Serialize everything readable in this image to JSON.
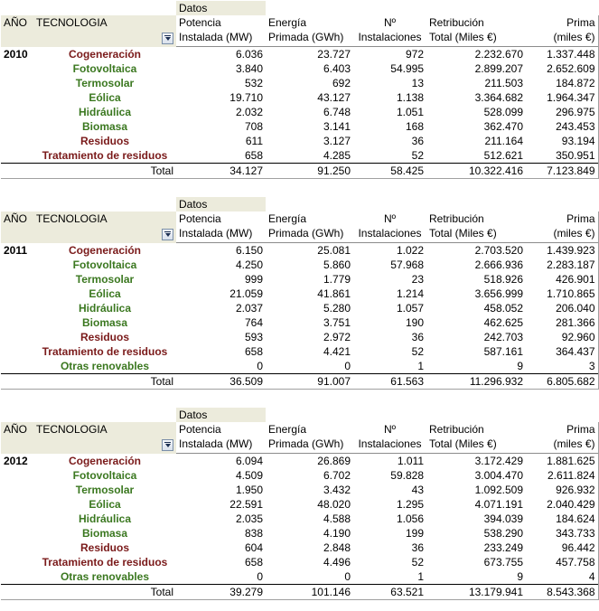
{
  "datos_label": "Datos",
  "headers": {
    "ano": "AÑO",
    "tecnologia": "TECNOLOGIA",
    "potencia": [
      "Potencia",
      "Instalada (MW)"
    ],
    "energia": [
      "Energía",
      "Primada (GWh)"
    ],
    "instalaciones": [
      "Nº",
      "Instalaciones"
    ],
    "retribucion": [
      "Retribución",
      "Total (Miles €)"
    ],
    "prima": [
      "Prima",
      "(miles €)"
    ]
  },
  "total_label": "Total",
  "filter_icon": "dropdown-filter-icon",
  "colors": {
    "green": "#3b7820",
    "maroon": "#7a1a1a",
    "header_bg": "#ecebdc"
  },
  "tables": [
    {
      "year": "2010",
      "rows": [
        {
          "tec": "Cogeneración",
          "color": "maroon",
          "potencia": "6.036",
          "energia": "23.727",
          "instalaciones": "972",
          "retribucion": "2.232.670",
          "prima": "1.337.448"
        },
        {
          "tec": "Fotovoltaica",
          "color": "green",
          "potencia": "3.840",
          "energia": "6.403",
          "instalaciones": "54.995",
          "retribucion": "2.899.207",
          "prima": "2.652.609"
        },
        {
          "tec": "Termosolar",
          "color": "green",
          "potencia": "532",
          "energia": "692",
          "instalaciones": "13",
          "retribucion": "211.503",
          "prima": "184.872"
        },
        {
          "tec": "Eólica",
          "color": "green",
          "potencia": "19.710",
          "energia": "43.127",
          "instalaciones": "1.138",
          "retribucion": "3.364.682",
          "prima": "1.964.347"
        },
        {
          "tec": "Hidráulica",
          "color": "green",
          "potencia": "2.032",
          "energia": "6.748",
          "instalaciones": "1.051",
          "retribucion": "528.099",
          "prima": "296.975"
        },
        {
          "tec": "Biomasa",
          "color": "green",
          "potencia": "708",
          "energia": "3.141",
          "instalaciones": "168",
          "retribucion": "362.470",
          "prima": "243.453"
        },
        {
          "tec": "Residuos",
          "color": "maroon",
          "potencia": "611",
          "energia": "3.127",
          "instalaciones": "36",
          "retribucion": "211.164",
          "prima": "93.194"
        },
        {
          "tec": "Tratamiento de residuos",
          "color": "maroon",
          "potencia": "658",
          "energia": "4.285",
          "instalaciones": "52",
          "retribucion": "512.621",
          "prima": "350.951"
        }
      ],
      "total": {
        "potencia": "34.127",
        "energia": "91.250",
        "instalaciones": "58.425",
        "retribucion": "10.322.416",
        "prima": "7.123.849"
      }
    },
    {
      "year": "2011",
      "rows": [
        {
          "tec": "Cogeneración",
          "color": "maroon",
          "potencia": "6.150",
          "energia": "25.081",
          "instalaciones": "1.022",
          "retribucion": "2.703.520",
          "prima": "1.439.923"
        },
        {
          "tec": "Fotovoltaica",
          "color": "green",
          "potencia": "4.250",
          "energia": "5.860",
          "instalaciones": "57.968",
          "retribucion": "2.666.936",
          "prima": "2.283.187"
        },
        {
          "tec": "Termosolar",
          "color": "green",
          "potencia": "999",
          "energia": "1.779",
          "instalaciones": "23",
          "retribucion": "518.926",
          "prima": "426.901"
        },
        {
          "tec": "Eólica",
          "color": "green",
          "potencia": "21.059",
          "energia": "41.861",
          "instalaciones": "1.214",
          "retribucion": "3.656.999",
          "prima": "1.710.865"
        },
        {
          "tec": "Hidráulica",
          "color": "green",
          "potencia": "2.037",
          "energia": "5.280",
          "instalaciones": "1.057",
          "retribucion": "458.052",
          "prima": "206.040"
        },
        {
          "tec": "Biomasa",
          "color": "green",
          "potencia": "764",
          "energia": "3.751",
          "instalaciones": "190",
          "retribucion": "462.625",
          "prima": "281.366"
        },
        {
          "tec": "Residuos",
          "color": "maroon",
          "potencia": "593",
          "energia": "2.972",
          "instalaciones": "36",
          "retribucion": "242.703",
          "prima": "92.960"
        },
        {
          "tec": "Tratamiento de residuos",
          "color": "maroon",
          "potencia": "658",
          "energia": "4.421",
          "instalaciones": "52",
          "retribucion": "587.161",
          "prima": "364.437"
        },
        {
          "tec": "Otras renovables",
          "color": "green",
          "potencia": "0",
          "energia": "0",
          "instalaciones": "1",
          "retribucion": "9",
          "prima": "3"
        }
      ],
      "total": {
        "potencia": "36.509",
        "energia": "91.007",
        "instalaciones": "61.563",
        "retribucion": "11.296.932",
        "prima": "6.805.682"
      }
    },
    {
      "year": "2012",
      "rows": [
        {
          "tec": "Cogeneración",
          "color": "maroon",
          "potencia": "6.094",
          "energia": "26.869",
          "instalaciones": "1.011",
          "retribucion": "3.172.429",
          "prima": "1.881.625"
        },
        {
          "tec": "Fotovoltaica",
          "color": "green",
          "potencia": "4.509",
          "energia": "6.702",
          "instalaciones": "59.828",
          "retribucion": "3.004.470",
          "prima": "2.611.824"
        },
        {
          "tec": "Termosolar",
          "color": "green",
          "potencia": "1.950",
          "energia": "3.432",
          "instalaciones": "43",
          "retribucion": "1.092.509",
          "prima": "926.932"
        },
        {
          "tec": "Eólica",
          "color": "green",
          "potencia": "22.591",
          "energia": "48.020",
          "instalaciones": "1.295",
          "retribucion": "4.071.191",
          "prima": "2.040.429"
        },
        {
          "tec": "Hidráulica",
          "color": "green",
          "potencia": "2.035",
          "energia": "4.588",
          "instalaciones": "1.056",
          "retribucion": "394.039",
          "prima": "184.624"
        },
        {
          "tec": "Biomasa",
          "color": "green",
          "potencia": "838",
          "energia": "4.190",
          "instalaciones": "199",
          "retribucion": "538.290",
          "prima": "343.733"
        },
        {
          "tec": "Residuos",
          "color": "maroon",
          "potencia": "604",
          "energia": "2.848",
          "instalaciones": "36",
          "retribucion": "233.249",
          "prima": "96.442"
        },
        {
          "tec": "Tratamiento de residuos",
          "color": "maroon",
          "potencia": "658",
          "energia": "4.496",
          "instalaciones": "52",
          "retribucion": "673.755",
          "prima": "457.758"
        },
        {
          "tec": "Otras renovables",
          "color": "green",
          "potencia": "0",
          "energia": "0",
          "instalaciones": "1",
          "retribucion": "9",
          "prima": "4"
        }
      ],
      "total": {
        "potencia": "39.279",
        "energia": "101.146",
        "instalaciones": "63.521",
        "retribucion": "13.179.941",
        "prima": "8.543.368"
      }
    }
  ]
}
